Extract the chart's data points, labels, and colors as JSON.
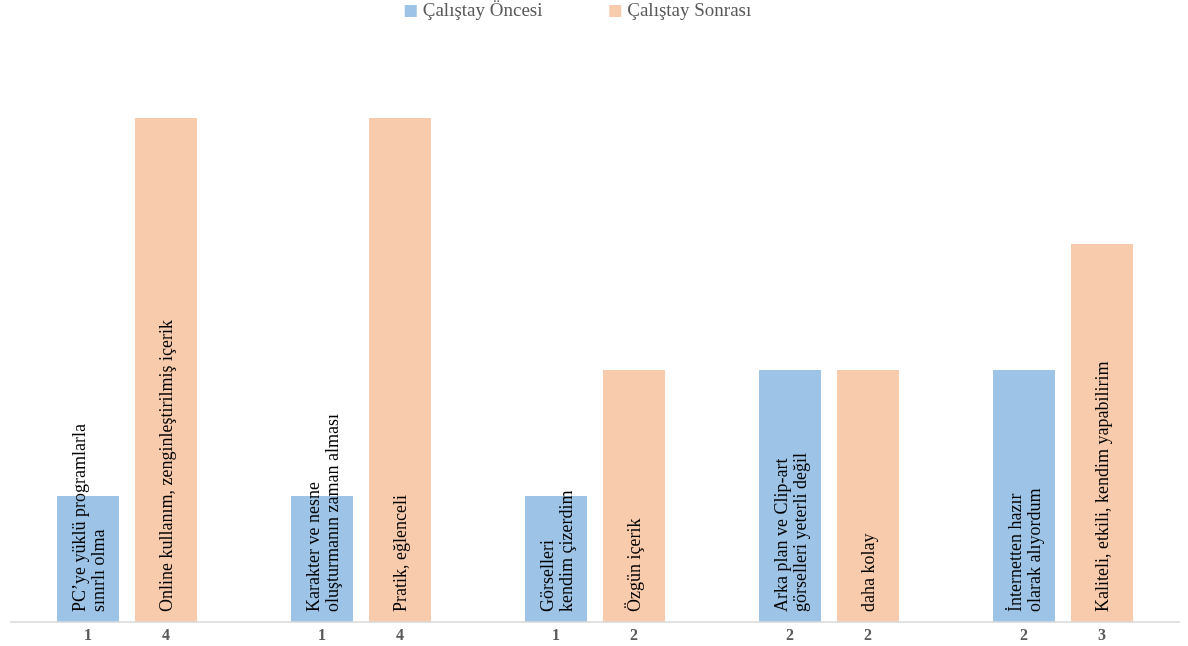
{
  "chart_data": {
    "type": "bar",
    "categories": [
      null,
      null,
      null,
      null,
      null
    ],
    "series": [
      {
        "name": "Çalıştay Öncesi",
        "color": "#9dc3e6",
        "values": [
          1,
          1,
          1,
          2,
          2
        ]
      },
      {
        "name": "Çalıştay Sonrası",
        "color": "#f8cbad",
        "values": [
          4,
          4,
          2,
          2,
          3
        ]
      }
    ],
    "data_labels": true,
    "legend": "top",
    "annotations": [
      "PC’ye yüklü programlarla\nsınırlı olma",
      "Online kullanım, zenginleştirilmiş içerik",
      "Karakter ve nesne\noluşturmanın zaman alması",
      "Pratik, eğlenceli",
      "Görselleri\nkendim çizerdim",
      "Özgün içerik",
      "Arka plan ve Clip-art\ngörselleri yeterli değil",
      "daha kolay",
      "İnternetten hazır\nolarak alıyordum",
      "Kaliteli, etkili, kendim yapabilirim"
    ]
  }
}
